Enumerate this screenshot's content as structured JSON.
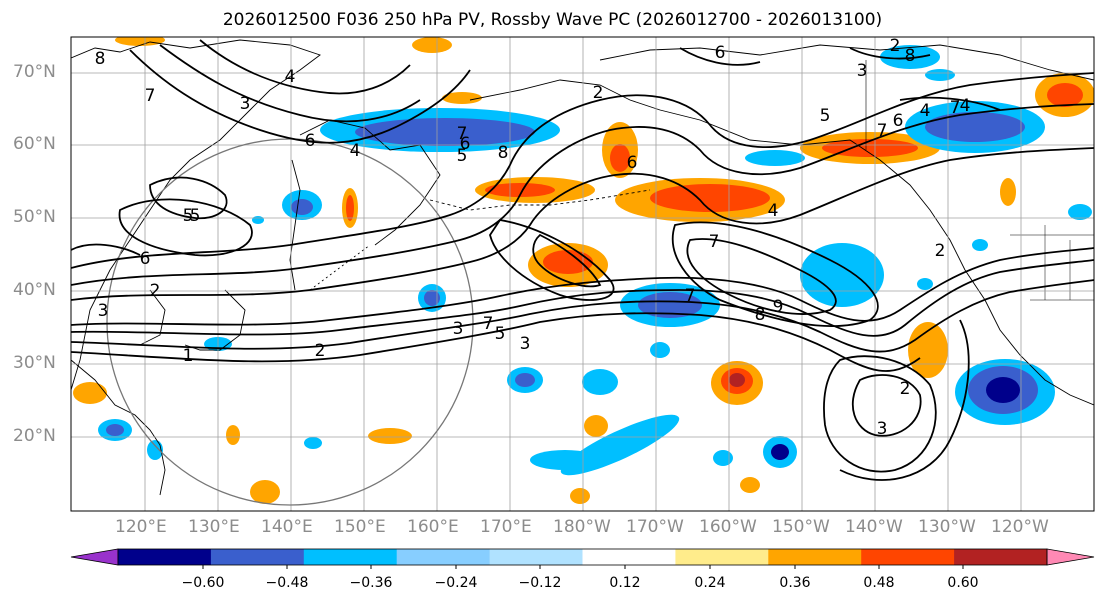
{
  "title": "2026012500 F036 250 hPa PV, Rossby Wave PC (2026012700 - 2026013100)",
  "map": {
    "lat_labels": [
      "70°N",
      "60°N",
      "50°N",
      "40°N",
      "30°N",
      "20°N"
    ],
    "lon_labels": [
      "120°E",
      "130°E",
      "140°E",
      "150°E",
      "160°E",
      "170°E",
      "180°W",
      "170°W",
      "160°W",
      "150°W",
      "140°W",
      "130°W",
      "120°W"
    ],
    "contour_labels": [
      "8",
      "4",
      "3",
      "6",
      "7",
      "5",
      "6",
      "3",
      "2",
      "3",
      "1",
      "2",
      "7",
      "5",
      "3",
      "2",
      "7",
      "6",
      "5",
      "8",
      "4",
      "6",
      "7",
      "8",
      "9",
      "8",
      "3",
      "4",
      "5",
      "6",
      "7",
      "4",
      "7",
      "2",
      "7",
      "3",
      "2",
      "5",
      "4",
      "2",
      "6"
    ],
    "colors": {
      "neg_strong": "#00008b",
      "neg_mid": "#3a5fcd",
      "neg_light": "#00bfff",
      "neg_pale": "#b0e0ff",
      "pos_pale": "#ffe88a",
      "pos_light": "#ffa500",
      "pos_mid": "#ff4500",
      "pos_strong": "#b22222",
      "contour": "#000000",
      "grid": "#a0a0a0",
      "coast": "#000000"
    }
  },
  "colorbar": {
    "tick_labels": [
      "−0.60",
      "−0.48",
      "−0.36",
      "−0.24",
      "−0.12",
      "0.12",
      "0.24",
      "0.36",
      "0.48",
      "0.60"
    ],
    "bins": [
      {
        "color": "#9932cc"
      },
      {
        "color": "#00008b"
      },
      {
        "color": "#3a5fcd"
      },
      {
        "color": "#00bfff"
      },
      {
        "color": "#87ceff"
      },
      {
        "color": "#b0e2ff"
      },
      {
        "color": "#ffffff"
      },
      {
        "color": "#ffec8b"
      },
      {
        "color": "#ffa500"
      },
      {
        "color": "#ff4500"
      },
      {
        "color": "#b22222"
      },
      {
        "color": "#ff89b4"
      }
    ]
  }
}
